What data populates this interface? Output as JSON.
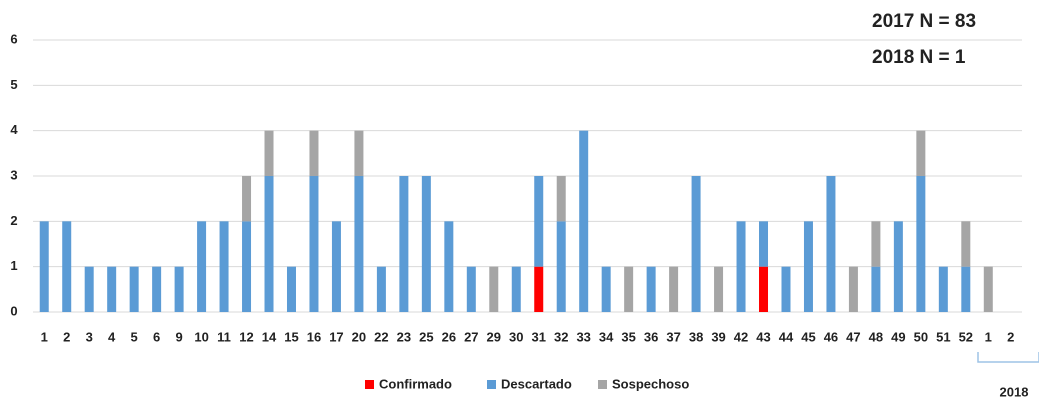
{
  "chart_data": {
    "type": "stacked-bar",
    "annotations": [
      "2017 N = 83",
      "2018 N = 1"
    ],
    "categories": [
      "1",
      "2",
      "3",
      "4",
      "5",
      "6",
      "9",
      "10",
      "11",
      "12",
      "14",
      "15",
      "16",
      "17",
      "20",
      "22",
      "23",
      "25",
      "26",
      "27",
      "29",
      "30",
      "31",
      "32",
      "33",
      "34",
      "35",
      "36",
      "37",
      "38",
      "39",
      "42",
      "43",
      "44",
      "45",
      "46",
      "47",
      "48",
      "49",
      "50",
      "51",
      "52",
      "1",
      "2"
    ],
    "group_label": "2018",
    "series": [
      {
        "name": "Confirmado",
        "color": "#ff0000",
        "values": [
          0,
          0,
          0,
          0,
          0,
          0,
          0,
          0,
          0,
          0,
          0,
          0,
          0,
          0,
          0,
          0,
          0,
          0,
          0,
          0,
          0,
          0,
          1,
          0,
          0,
          0,
          0,
          0,
          0,
          0,
          0,
          0,
          1,
          0,
          0,
          0,
          0,
          0,
          0,
          0,
          0,
          0,
          0,
          0
        ]
      },
      {
        "name": "Descartado",
        "color": "#5b9bd5",
        "values": [
          2,
          2,
          1,
          1,
          1,
          1,
          1,
          2,
          2,
          2,
          3,
          1,
          3,
          2,
          3,
          1,
          3,
          3,
          2,
          1,
          0,
          1,
          2,
          2,
          4,
          1,
          0,
          1,
          0,
          3,
          0,
          2,
          1,
          1,
          2,
          3,
          0,
          1,
          2,
          3,
          1,
          1,
          0,
          0
        ]
      },
      {
        "name": "Sospechoso",
        "color": "#a5a5a5",
        "values": [
          0,
          0,
          0,
          0,
          0,
          0,
          0,
          0,
          0,
          1,
          1,
          0,
          1,
          0,
          1,
          0,
          0,
          0,
          0,
          0,
          1,
          0,
          0,
          1,
          0,
          0,
          1,
          0,
          1,
          0,
          1,
          0,
          0,
          0,
          0,
          0,
          1,
          1,
          0,
          1,
          0,
          1,
          1,
          0
        ]
      }
    ],
    "ylim": [
      0,
      6
    ],
    "yticks": [
      0,
      1,
      2,
      3,
      4,
      5,
      6
    ],
    "grid": true
  }
}
